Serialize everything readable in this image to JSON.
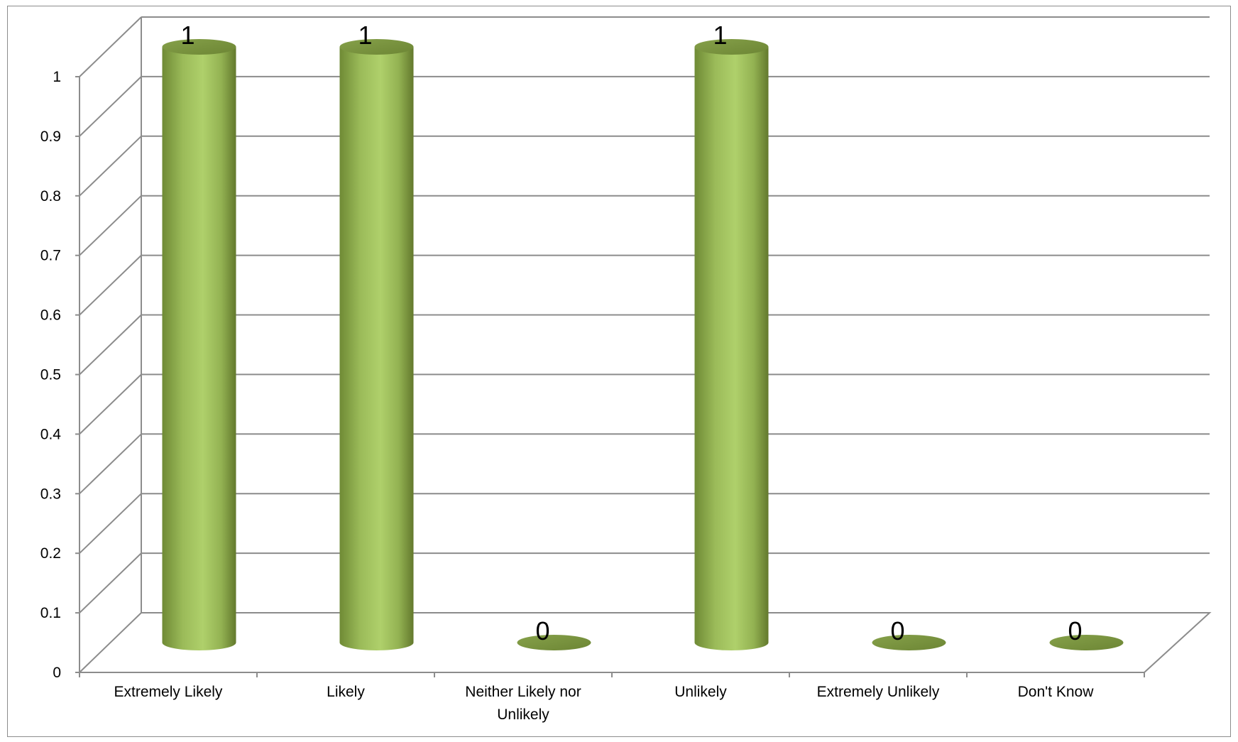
{
  "chart_data": {
    "type": "bar",
    "style": "3d-cylinder",
    "categories": [
      "Extremely Likely",
      "Likely",
      "Neither Likely nor Unlikely",
      "Unlikely",
      "Extremely Unlikely",
      "Don't Know"
    ],
    "category_label_lines": [
      [
        "Extremely Likely"
      ],
      [
        "Likely"
      ],
      [
        "Neither Likely nor",
        "Unlikely"
      ],
      [
        "Unlikely"
      ],
      [
        "Extremely Unlikely"
      ],
      [
        "Don't Know"
      ]
    ],
    "values": [
      1,
      1,
      0,
      1,
      0,
      0
    ],
    "data_labels": [
      "1",
      "1",
      "0",
      "1",
      "0",
      "0"
    ],
    "ylim": [
      0,
      1
    ],
    "yticks": [
      0,
      0.1,
      0.2,
      0.3,
      0.4,
      0.5,
      0.6,
      0.7,
      0.8,
      0.9,
      1
    ],
    "ytick_labels": [
      "0",
      "0.1",
      "0.2",
      "0.3",
      "0.4",
      "0.5",
      "0.6",
      "0.7",
      "0.8",
      "0.9",
      "1"
    ],
    "title": "",
    "xlabel": "",
    "ylabel": "",
    "grid": true,
    "legend": "none",
    "colors": {
      "bar_light": "#a8c964",
      "bar_mid": "#9bbb59",
      "bar_dark": "#6f8a35",
      "bar_top": "#7a9440",
      "grid": "#8c8c8c"
    }
  }
}
